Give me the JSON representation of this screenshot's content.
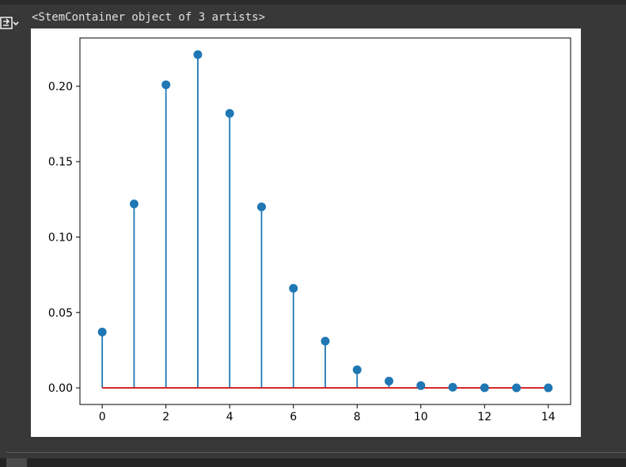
{
  "output": {
    "repr_text": "<StemContainer object of 3 artists>",
    "icon": "output-toggle-icon"
  },
  "colors": {
    "stem": "#1f77b4",
    "baseline": "#d62728",
    "plot_bg": "#ffffff",
    "page_bg": "#383838"
  },
  "chart_data": {
    "type": "stem",
    "x": [
      0,
      1,
      2,
      3,
      4,
      5,
      6,
      7,
      8,
      9,
      10,
      11,
      12,
      13,
      14
    ],
    "y": [
      0.037,
      0.122,
      0.201,
      0.221,
      0.182,
      0.12,
      0.066,
      0.031,
      0.012,
      0.0045,
      0.0015,
      0.0004,
      0.0001,
      2e-05,
      0.0
    ],
    "baseline": 0,
    "xlim": [
      -0.7,
      14.7
    ],
    "ylim": [
      -0.011,
      0.232
    ],
    "xticks": [
      0,
      2,
      4,
      6,
      8,
      10,
      12,
      14
    ],
    "xtick_labels": [
      "0",
      "2",
      "4",
      "6",
      "8",
      "10",
      "12",
      "14"
    ],
    "yticks": [
      0.0,
      0.05,
      0.1,
      0.15,
      0.2
    ],
    "ytick_labels": [
      "0.00",
      "0.05",
      "0.10",
      "0.15",
      "0.20"
    ],
    "title": "",
    "xlabel": "",
    "ylabel": "",
    "grid": false
  }
}
